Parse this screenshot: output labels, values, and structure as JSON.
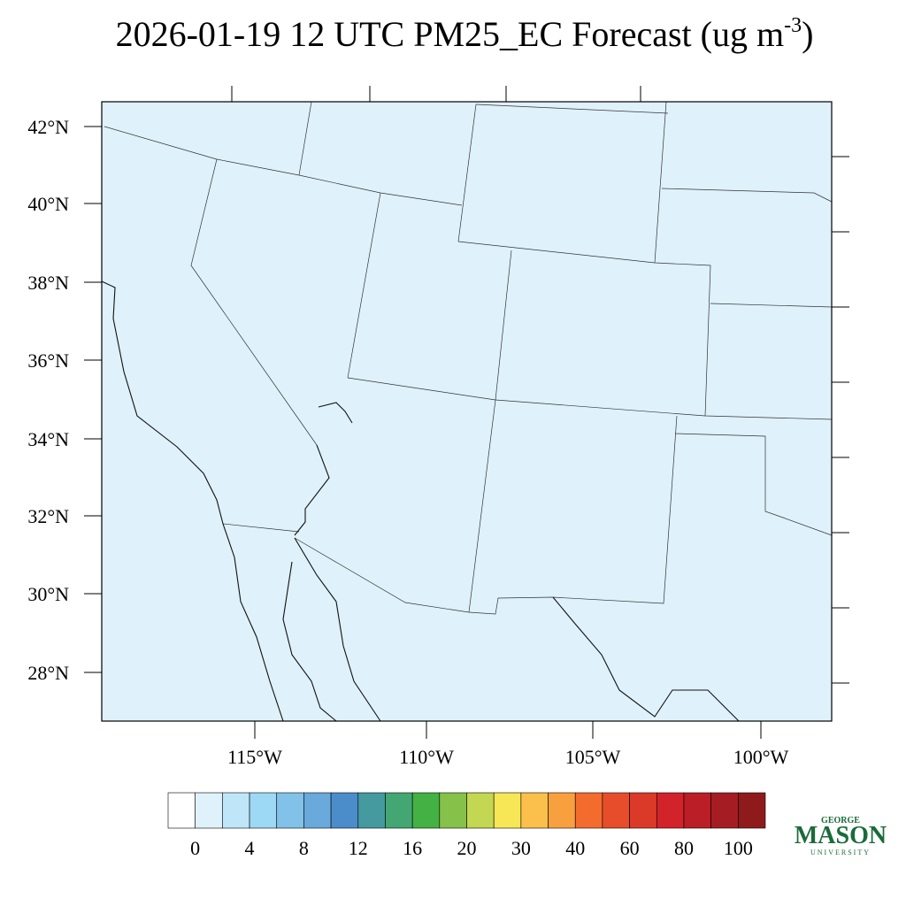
{
  "title": {
    "main": "2026-01-19 12 UTC PM25_EC Forecast (ug m",
    "superscript": "-3",
    "close": ")"
  },
  "latitude_labels": [
    "42°N",
    "40°N",
    "38°N",
    "36°N",
    "34°N",
    "32°N",
    "30°N",
    "28°N"
  ],
  "longitude_labels": [
    "115°W",
    "110°W",
    "105°W",
    "100°W"
  ],
  "colorbar": {
    "colors": [
      "#ffffff",
      "#dff1fb",
      "#bfe6f8",
      "#9dd8f4",
      "#82c2e8",
      "#69a9dc",
      "#4b8dcb",
      "#449a9e",
      "#44a673",
      "#43b143",
      "#86c14a",
      "#c3d752",
      "#f7e756",
      "#fbc04c",
      "#f9a03e",
      "#f36c2e",
      "#e84d2b",
      "#dc3a28",
      "#d2232a",
      "#bb1e26",
      "#a51d23",
      "#8e1a1c"
    ],
    "labels": [
      "0",
      "4",
      "8",
      "12",
      "16",
      "20",
      "30",
      "40",
      "60",
      "80",
      "100"
    ]
  },
  "logo": {
    "top": "GEORGE",
    "main": "MASON",
    "bottom": "UNIVERSITY"
  }
}
